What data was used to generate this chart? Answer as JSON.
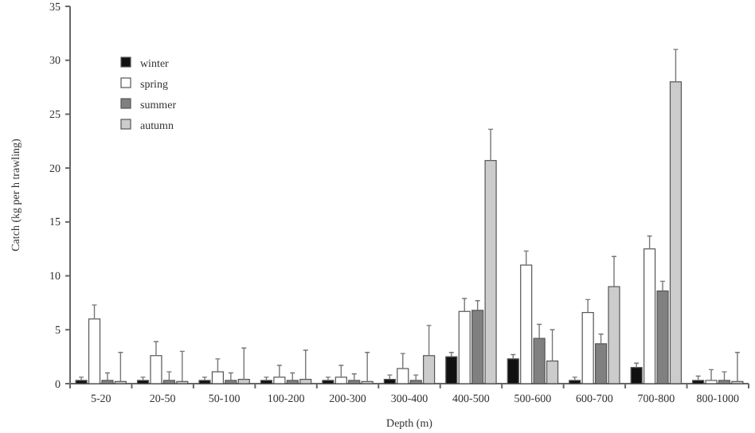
{
  "chart_data": {
    "type": "bar",
    "xlabel": "Depth (m)",
    "ylabel": "Catch (kg per h trawling)",
    "categories": [
      "5-20",
      "20-50",
      "50-100",
      "100-200",
      "200-300",
      "300-400",
      "400-500",
      "500-600",
      "600-700",
      "700-800",
      "800-1000"
    ],
    "series": [
      {
        "name": "winter",
        "color": "#111111",
        "values": [
          0.3,
          0.3,
          0.3,
          0.3,
          0.3,
          0.4,
          2.5,
          2.3,
          0.3,
          1.5,
          0.3
        ],
        "errors": [
          [
            0.3,
            0.6
          ],
          [
            0.3,
            0.6
          ],
          [
            0.3,
            0.6
          ],
          [
            0.3,
            0.6
          ],
          [
            0.3,
            0.6
          ],
          [
            0.4,
            0.8
          ],
          [
            2.5,
            2.9
          ],
          [
            2.3,
            2.7
          ],
          [
            0.3,
            0.6
          ],
          [
            1.5,
            1.9
          ],
          [
            0.3,
            0.7
          ]
        ]
      },
      {
        "name": "spring",
        "color": "#ffffff",
        "values": [
          6.0,
          2.6,
          1.1,
          0.6,
          0.6,
          1.4,
          6.7,
          11.0,
          6.6,
          12.5,
          0.3
        ],
        "errors": [
          [
            6.0,
            7.3
          ],
          [
            2.6,
            3.9
          ],
          [
            1.1,
            2.3
          ],
          [
            0.6,
            1.7
          ],
          [
            0.6,
            1.7
          ],
          [
            1.4,
            2.8
          ],
          [
            6.7,
            7.9
          ],
          [
            11.0,
            12.3
          ],
          [
            6.6,
            7.8
          ],
          [
            12.5,
            13.7
          ],
          [
            0.3,
            1.3
          ]
        ]
      },
      {
        "name": "summer",
        "color": "#808080",
        "values": [
          0.3,
          0.3,
          0.3,
          0.3,
          0.3,
          0.3,
          6.8,
          4.2,
          3.7,
          8.6,
          0.3
        ],
        "errors": [
          [
            0.3,
            1.0
          ],
          [
            0.3,
            1.1
          ],
          [
            0.3,
            1.0
          ],
          [
            0.3,
            1.0
          ],
          [
            0.3,
            0.9
          ],
          [
            0.3,
            0.8
          ],
          [
            6.8,
            7.7
          ],
          [
            4.2,
            5.5
          ],
          [
            3.7,
            4.6
          ],
          [
            8.6,
            9.5
          ],
          [
            0.3,
            1.1
          ]
        ]
      },
      {
        "name": "autumn",
        "color": "#cccccc",
        "values": [
          0.2,
          0.2,
          0.4,
          0.4,
          0.2,
          2.6,
          20.7,
          2.1,
          9.0,
          28.0,
          0.2
        ],
        "errors": [
          [
            0.2,
            2.9
          ],
          [
            0.2,
            3.0
          ],
          [
            0.4,
            3.3
          ],
          [
            0.4,
            3.1
          ],
          [
            0.2,
            2.9
          ],
          [
            2.6,
            5.4
          ],
          [
            20.7,
            23.6
          ],
          [
            2.1,
            5.0
          ],
          [
            9.0,
            11.8
          ],
          [
            28.0,
            31.0
          ],
          [
            0.2,
            2.9
          ]
        ]
      }
    ],
    "ylim": [
      0,
      35
    ],
    "yticks": [
      0,
      5,
      10,
      15,
      20,
      25,
      30,
      35
    ],
    "legend": "top left",
    "grid": false
  }
}
